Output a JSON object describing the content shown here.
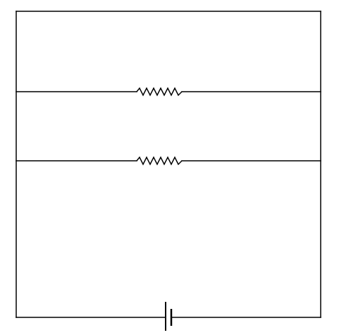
{
  "diagram": {
    "type": "circuit",
    "colors": {
      "background": "#ffffff",
      "wire": "#000000"
    },
    "components": [
      {
        "kind": "resistor",
        "branch": "upper"
      },
      {
        "kind": "resistor",
        "branch": "lower"
      },
      {
        "kind": "battery",
        "branch": "bottom"
      }
    ],
    "connection": "parallel"
  }
}
